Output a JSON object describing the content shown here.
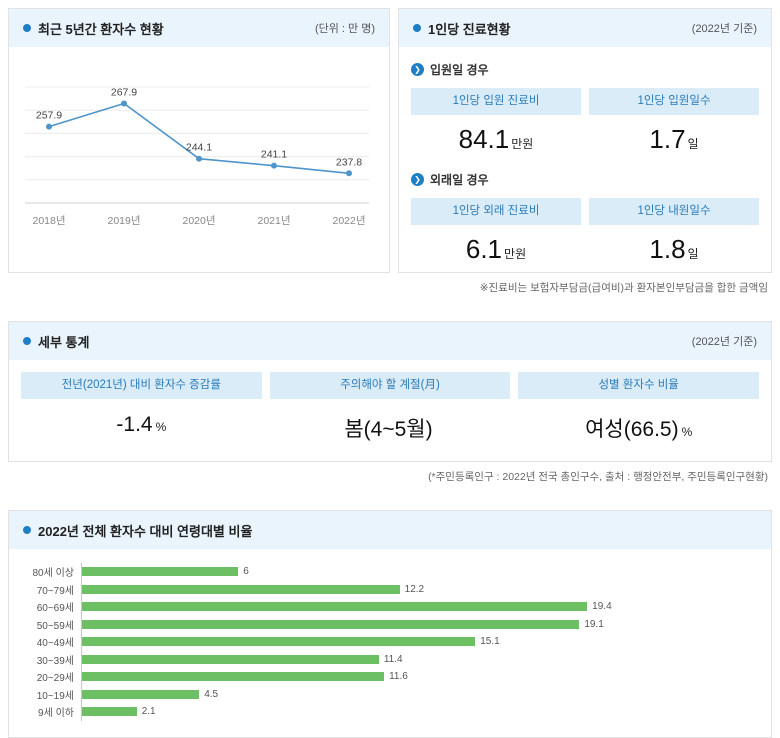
{
  "panels": {
    "patients5yr": {
      "title": "최근 5년간 환자수 현황",
      "note": "(단위 : 만 명)"
    },
    "perPerson": {
      "title": "1인당 진료현황",
      "note": "(2022년 기준)",
      "inpatient": {
        "section": "입원일 경우",
        "items": [
          {
            "label": "1인당 입원 진료비",
            "value": "84.1",
            "unit": "만원"
          },
          {
            "label": "1인당 입원일수",
            "value": "1.7",
            "unit": "일"
          }
        ]
      },
      "outpatient": {
        "section": "외래일 경우",
        "items": [
          {
            "label": "1인당 외래 진료비",
            "value": "6.1",
            "unit": "만원"
          },
          {
            "label": "1인당 내원일수",
            "value": "1.8",
            "unit": "일"
          }
        ]
      },
      "footnote": "※진료비는 보험자부담금(급여비)과 환자본인부담금을 합한 금액임"
    },
    "detail": {
      "title": "세부 통계",
      "note": "(2022년 기준)",
      "items": [
        {
          "label": "전년(2021년) 대비 환자수 증감률",
          "value": "-1.4",
          "unit": "%"
        },
        {
          "label": "주의해야 할 계절(月)",
          "value": "봄(4~5월)",
          "unit": ""
        },
        {
          "label": "성별 환자수 비율",
          "value": "여성(66.5)",
          "unit": "%"
        }
      ],
      "footnote": "(*주민등록인구 : 2022년 전국 총인구수, 출처 : 행정안전부, 주민등록인구현황)"
    },
    "ageRatio": {
      "title": "2022년 전체 환자수 대비 연령대별 비율"
    }
  },
  "colors": {
    "accent_blue": "#1e7fc4",
    "header_bg": "#e9f4fc",
    "label_box_bg": "#d9ecf8",
    "label_box_text": "#2b7bb9",
    "line_color": "#4e95cb",
    "bar_color": "#6cbf63"
  },
  "chart_data": [
    {
      "type": "line",
      "title": "최근 5년간 환자수 현황",
      "unit": "만 명",
      "categories": [
        "2018년",
        "2019년",
        "2020년",
        "2021년",
        "2022년"
      ],
      "values": [
        257.9,
        267.9,
        244.1,
        241.1,
        237.8
      ],
      "ylim": [
        225,
        275
      ],
      "grid": true,
      "legend": false,
      "color": "#4e95cb"
    },
    {
      "type": "bar",
      "orientation": "horizontal",
      "title": "2022년 전체 환자수 대비 연령대별 비율",
      "categories": [
        "80세 이상",
        "70~79세",
        "60~69세",
        "50~59세",
        "40~49세",
        "30~39세",
        "20~29세",
        "10~19세",
        "9세 이하"
      ],
      "values": [
        6,
        12.2,
        19.4,
        19.1,
        15.1,
        11.4,
        11.6,
        4.5,
        2.1
      ],
      "xlim": [
        0,
        26
      ],
      "grid": false,
      "legend": false,
      "color": "#6cbf63"
    }
  ]
}
